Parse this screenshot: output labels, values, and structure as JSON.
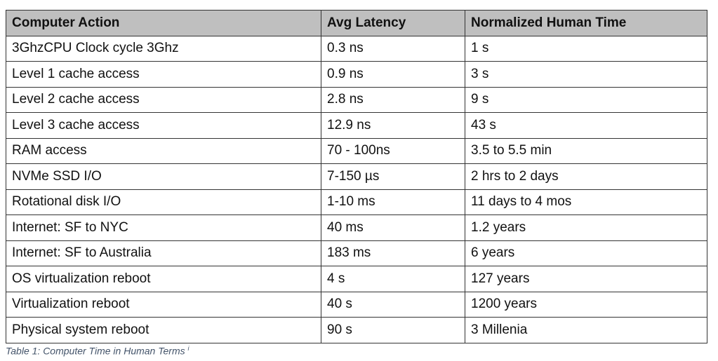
{
  "table": {
    "header": [
      "Computer Action",
      "Avg Latency",
      "Normalized Human Time"
    ],
    "rows": [
      [
        "3GhzCPU Clock cycle 3Ghz",
        "0.3 ns",
        "1 s"
      ],
      [
        "Level 1 cache access",
        "0.9 ns",
        "3 s"
      ],
      [
        "Level 2 cache access",
        "2.8 ns",
        "9 s"
      ],
      [
        "Level 3 cache access",
        "12.9 ns",
        "43 s"
      ],
      [
        "RAM access",
        "70 - 100ns",
        "3.5 to 5.5 min"
      ],
      [
        "NVMe SSD I/O",
        "7-150 µs",
        "2 hrs to 2 days"
      ],
      [
        "Rotational disk I/O",
        "1-10 ms",
        "11 days to 4 mos"
      ],
      [
        "Internet: SF to NYC",
        "40 ms",
        "1.2 years"
      ],
      [
        "Internet: SF to Australia",
        "183 ms",
        "6 years"
      ],
      [
        "OS virtualization reboot",
        "4 s",
        "127 years"
      ],
      [
        "Virtualization reboot",
        "40 s",
        "1200 years"
      ],
      [
        "Physical system reboot",
        "90 s",
        "3 Millenia"
      ]
    ],
    "caption": "Table 1: Computer Time in Human Terms",
    "footnote_mark": "i"
  }
}
